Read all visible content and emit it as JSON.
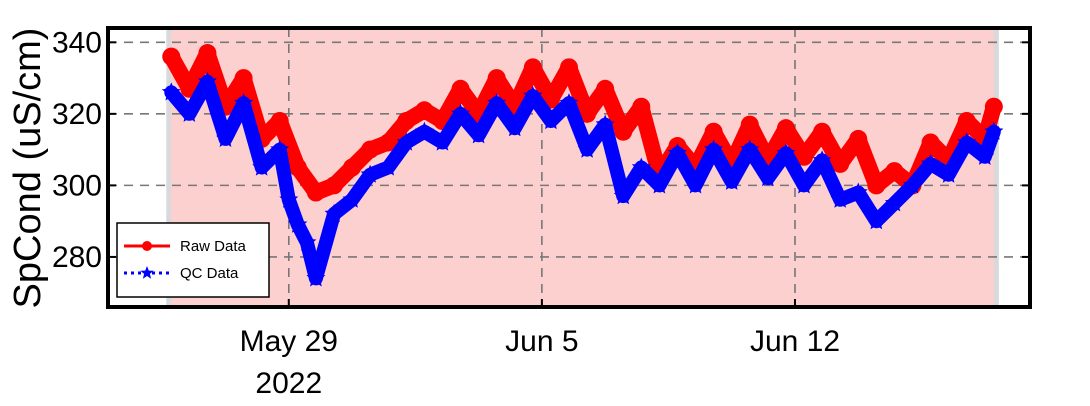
{
  "chart_data": {
    "type": "line",
    "ylabel": "SpCond (uS/cm)",
    "xlabel": "",
    "xlim": [
      "2022-05-24T00:00",
      "2022-06-18T12:00"
    ],
    "ylim": [
      266,
      344
    ],
    "yticks": [
      280,
      300,
      320,
      340
    ],
    "xticks": [
      {
        "date": "2022-05-29",
        "label": "May 29",
        "sublabel": "2022"
      },
      {
        "date": "2022-06-05",
        "label": "Jun 5",
        "sublabel": ""
      },
      {
        "date": "2022-06-12",
        "label": "Jun 12",
        "sublabel": ""
      }
    ],
    "grid": true,
    "legend_position": "lower-left",
    "shaded_region": {
      "start": "2022-05-25T18:00",
      "end": "2022-06-17T12:00",
      "color": "#fdd0d0"
    },
    "gray_band_color": "#d9d9dc",
    "series": [
      {
        "name": "Raw Data",
        "color": "#ff0000",
        "line_style": "solid",
        "marker": "circle",
        "x": [
          "2022-05-25T18:00",
          "2022-05-26T06:00",
          "2022-05-26T18:00",
          "2022-05-27T06:00",
          "2022-05-27T18:00",
          "2022-05-28T06:00",
          "2022-05-28T18:00",
          "2022-05-29T06:00",
          "2022-05-29T18:00",
          "2022-05-30T06:00",
          "2022-05-30T18:00",
          "2022-05-31T06:00",
          "2022-05-31T18:00",
          "2022-06-01T06:00",
          "2022-06-01T18:00",
          "2022-06-02T06:00",
          "2022-06-02T18:00",
          "2022-06-03T06:00",
          "2022-06-03T18:00",
          "2022-06-04T06:00",
          "2022-06-04T18:00",
          "2022-06-05T06:00",
          "2022-06-05T18:00",
          "2022-06-06T06:00",
          "2022-06-06T18:00",
          "2022-06-07T06:00",
          "2022-06-07T18:00",
          "2022-06-08T06:00",
          "2022-06-08T18:00",
          "2022-06-09T06:00",
          "2022-06-09T18:00",
          "2022-06-10T06:00",
          "2022-06-10T18:00",
          "2022-06-11T06:00",
          "2022-06-11T18:00",
          "2022-06-12T06:00",
          "2022-06-12T18:00",
          "2022-06-13T06:00",
          "2022-06-13T18:00",
          "2022-06-14T06:00",
          "2022-06-14T18:00",
          "2022-06-15T06:00",
          "2022-06-15T18:00",
          "2022-06-16T06:00",
          "2022-06-16T18:00",
          "2022-06-17T06:00",
          "2022-06-17T12:00"
        ],
        "y": [
          336,
          327,
          337,
          322,
          330,
          313,
          318,
          305,
          298,
          300,
          305,
          310,
          312,
          318,
          321,
          318,
          327,
          320,
          330,
          322,
          333,
          324,
          333,
          320,
          327,
          315,
          322,
          303,
          311,
          305,
          315,
          306,
          317,
          307,
          316,
          308,
          315,
          306,
          313,
          300,
          304,
          300,
          312,
          307,
          318,
          313,
          322
        ]
      },
      {
        "name": "QC Data",
        "color": "#0000ff",
        "line_style": "dotted",
        "marker": "star",
        "x": [
          "2022-05-25T18:00",
          "2022-05-26T06:00",
          "2022-05-26T18:00",
          "2022-05-27T06:00",
          "2022-05-27T18:00",
          "2022-05-28T06:00",
          "2022-05-28T18:00",
          "2022-05-29T00:00",
          "2022-05-29T06:00",
          "2022-05-29T12:00",
          "2022-05-29T18:00",
          "2022-05-30T06:00",
          "2022-05-30T18:00",
          "2022-05-31T06:00",
          "2022-05-31T18:00",
          "2022-06-01T06:00",
          "2022-06-01T18:00",
          "2022-06-02T06:00",
          "2022-06-02T18:00",
          "2022-06-03T06:00",
          "2022-06-03T18:00",
          "2022-06-04T06:00",
          "2022-06-04T18:00",
          "2022-06-05T06:00",
          "2022-06-05T18:00",
          "2022-06-06T06:00",
          "2022-06-06T18:00",
          "2022-06-07T06:00",
          "2022-06-07T18:00",
          "2022-06-08T06:00",
          "2022-06-08T18:00",
          "2022-06-09T06:00",
          "2022-06-09T18:00",
          "2022-06-10T06:00",
          "2022-06-10T18:00",
          "2022-06-11T06:00",
          "2022-06-11T18:00",
          "2022-06-12T06:00",
          "2022-06-12T18:00",
          "2022-06-13T06:00",
          "2022-06-13T18:00",
          "2022-06-14T06:00",
          "2022-06-14T18:00",
          "2022-06-15T06:00",
          "2022-06-15T18:00",
          "2022-06-16T06:00",
          "2022-06-16T18:00",
          "2022-06-17T06:00",
          "2022-06-17T12:00"
        ],
        "y": [
          326,
          320,
          329,
          313,
          323,
          305,
          310,
          296,
          289,
          284,
          274,
          292,
          296,
          303,
          305,
          312,
          315,
          312,
          320,
          314,
          323,
          316,
          325,
          318,
          323,
          310,
          317,
          297,
          305,
          300,
          309,
          300,
          310,
          301,
          310,
          302,
          309,
          300,
          307,
          296,
          298,
          290,
          295,
          300,
          306,
          303,
          312,
          308,
          315
        ]
      }
    ]
  }
}
